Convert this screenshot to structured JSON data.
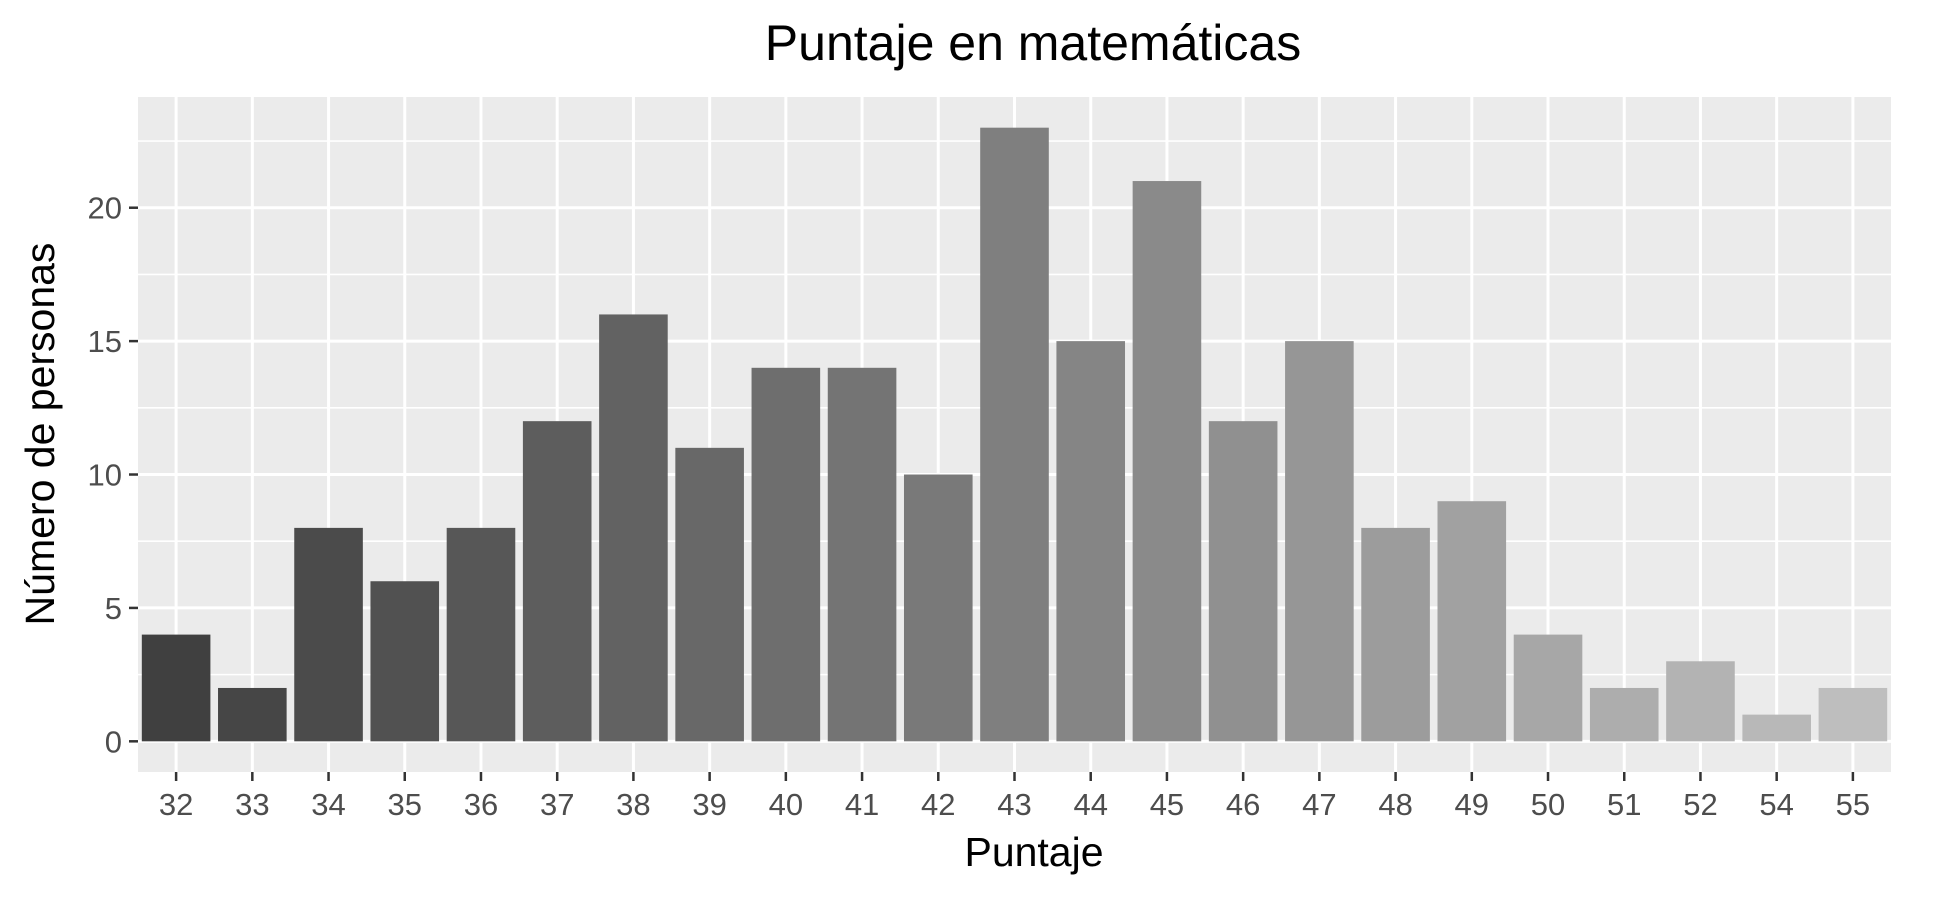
{
  "chart_data": {
    "type": "bar",
    "title": "Puntaje en matemáticas",
    "xlabel": "Puntaje",
    "ylabel": "Número de personas",
    "categories": [
      "32",
      "33",
      "34",
      "35",
      "36",
      "37",
      "38",
      "39",
      "40",
      "41",
      "42",
      "43",
      "44",
      "45",
      "46",
      "47",
      "48",
      "49",
      "50",
      "51",
      "52",
      "54",
      "55"
    ],
    "values": [
      4,
      2,
      8,
      6,
      8,
      12,
      16,
      11,
      14,
      14,
      10,
      23,
      15,
      21,
      12,
      15,
      8,
      9,
      4,
      2,
      3,
      1,
      2
    ],
    "yticks": [
      0,
      5,
      10,
      15,
      20
    ],
    "ytick_labels": [
      "0",
      "5",
      "10",
      "15",
      "20"
    ],
    "ylim": [
      -1.15,
      24.15
    ],
    "grid": true,
    "legend": "none",
    "colors": {
      "panel_background": "#ebebeb",
      "grid": "#ffffff",
      "bar_fill_start": "#404040",
      "bar_fill_end": "#bebebe",
      "tick_label": "#4d4d4d",
      "tick_mark": "#333333"
    }
  }
}
